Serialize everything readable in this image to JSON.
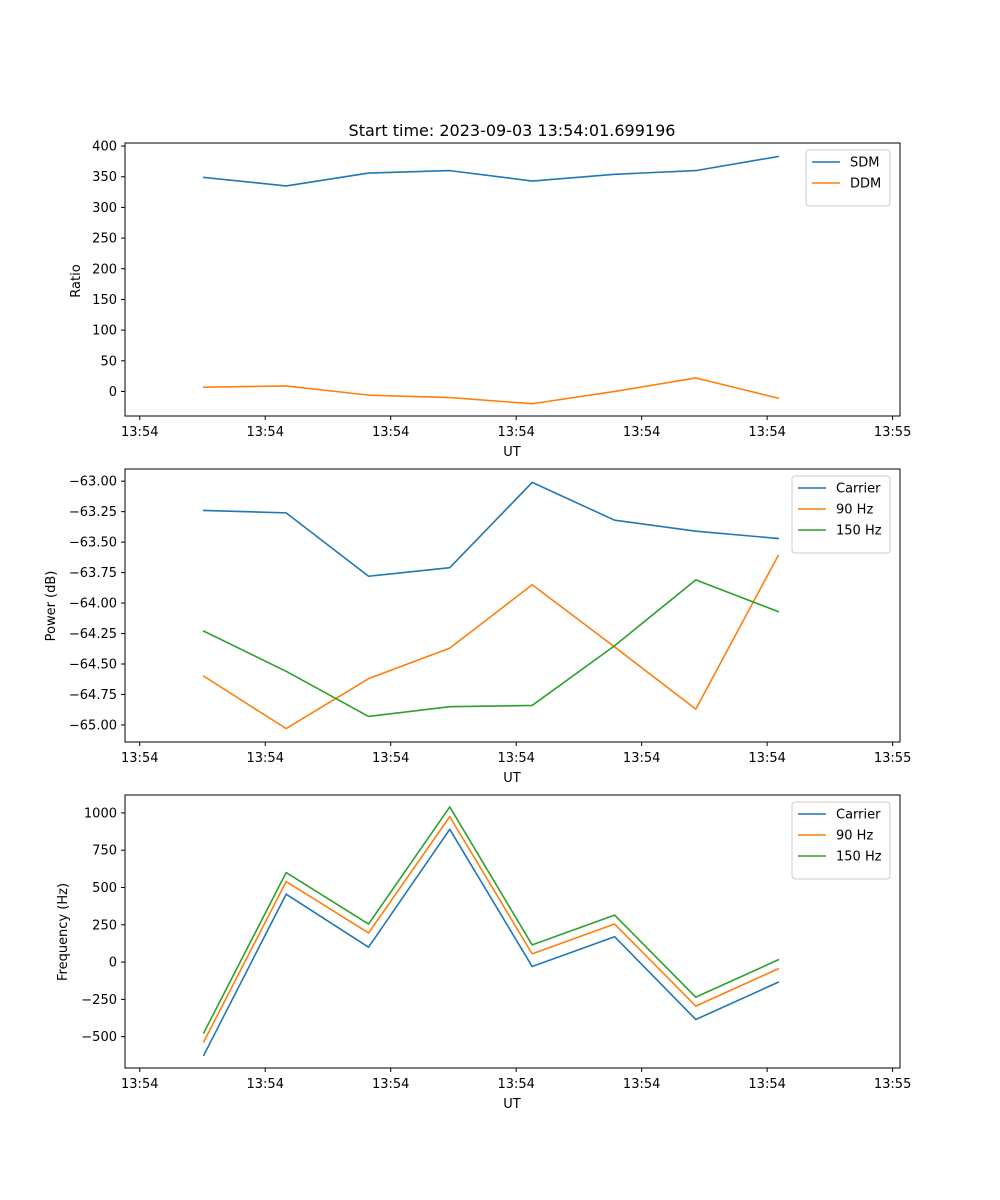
{
  "colors": {
    "blue": "#1f77b4",
    "orange": "#ff7f0e",
    "green": "#2ca02c"
  },
  "chart_data": [
    {
      "type": "line",
      "title": "Start time: 2023-09-03 13:54:01.699196",
      "xlabel": "UT",
      "ylabel": "Ratio",
      "ylim": [
        -40,
        405
      ],
      "yticks": [
        0,
        50,
        100,
        150,
        200,
        250,
        300,
        350,
        400
      ],
      "ytick_labels": [
        "0",
        "50",
        "100",
        "150",
        "200",
        "250",
        "300",
        "350",
        "400"
      ],
      "xlim": [
        0.5,
        6.8
      ],
      "xticks": [
        0.62,
        1.64,
        2.66,
        3.68,
        4.7,
        5.72,
        6.74
      ],
      "xtick_labels": [
        "13:54",
        "13:54",
        "13:54",
        "13:54",
        "13:54",
        "13:54",
        "13:55"
      ],
      "x": [
        1.14,
        1.81,
        2.48,
        3.14,
        3.81,
        4.48,
        5.14,
        5.81
      ],
      "legend_position": "upper-right",
      "series": [
        {
          "name": "SDM",
          "color": "#1f77b4",
          "values": [
            349,
            335,
            356,
            360,
            343,
            354,
            360,
            383
          ]
        },
        {
          "name": "DDM",
          "color": "#ff7f0e",
          "values": [
            7,
            9,
            -6,
            -10,
            -20,
            0,
            22,
            -11
          ]
        }
      ]
    },
    {
      "type": "line",
      "title": "",
      "xlabel": "UT",
      "ylabel": "Power (dB)",
      "ylim": [
        -65.14,
        -62.9
      ],
      "yticks": [
        -65.0,
        -64.75,
        -64.5,
        -64.25,
        -64.0,
        -63.75,
        -63.5,
        -63.25,
        -63.0
      ],
      "ytick_labels": [
        "−65.00",
        "−64.75",
        "−64.50",
        "−64.25",
        "−64.00",
        "−63.75",
        "−63.50",
        "−63.25",
        "−63.00"
      ],
      "xlim": [
        0.5,
        6.8
      ],
      "xticks": [
        0.62,
        1.64,
        2.66,
        3.68,
        4.7,
        5.72,
        6.74
      ],
      "xtick_labels": [
        "13:54",
        "13:54",
        "13:54",
        "13:54",
        "13:54",
        "13:54",
        "13:55"
      ],
      "x": [
        1.14,
        1.81,
        2.48,
        3.14,
        3.81,
        4.48,
        5.14,
        5.81
      ],
      "legend_position": "upper-right",
      "series": [
        {
          "name": "Carrier",
          "color": "#1f77b4",
          "values": [
            -63.24,
            -63.26,
            -63.78,
            -63.71,
            -63.01,
            -63.32,
            -63.41,
            -63.47
          ]
        },
        {
          "name": "90 Hz",
          "color": "#ff7f0e",
          "values": [
            -64.6,
            -65.03,
            -64.62,
            -64.37,
            -63.85,
            -64.36,
            -64.87,
            -63.61
          ]
        },
        {
          "name": "150 Hz",
          "color": "#2ca02c",
          "values": [
            -64.23,
            -64.56,
            -64.93,
            -64.85,
            -64.84,
            -64.35,
            -63.81,
            -64.07
          ]
        }
      ]
    },
    {
      "type": "line",
      "title": "",
      "xlabel": "UT",
      "ylabel": "Frequency (Hz)",
      "ylim": [
        -710,
        1120
      ],
      "yticks": [
        -500,
        -250,
        0,
        250,
        500,
        750,
        1000
      ],
      "ytick_labels": [
        "−500",
        "−250",
        "0",
        "250",
        "500",
        "750",
        "1000"
      ],
      "xlim": [
        0.5,
        6.8
      ],
      "xticks": [
        0.62,
        1.64,
        2.66,
        3.68,
        4.7,
        5.72,
        6.74
      ],
      "xtick_labels": [
        "13:54",
        "13:54",
        "13:54",
        "13:54",
        "13:54",
        "13:54",
        "13:55"
      ],
      "x": [
        1.14,
        1.81,
        2.48,
        3.14,
        3.81,
        4.48,
        5.14,
        5.81
      ],
      "legend_position": "upper-right",
      "series": [
        {
          "name": "Carrier",
          "color": "#1f77b4",
          "values": [
            -625,
            455,
            100,
            890,
            -30,
            170,
            -385,
            -135
          ]
        },
        {
          "name": "90 Hz",
          "color": "#ff7f0e",
          "values": [
            -535,
            540,
            195,
            975,
            55,
            255,
            -295,
            -45
          ]
        },
        {
          "name": "150 Hz",
          "color": "#2ca02c",
          "values": [
            -475,
            600,
            255,
            1040,
            115,
            315,
            -235,
            15
          ]
        }
      ]
    }
  ]
}
